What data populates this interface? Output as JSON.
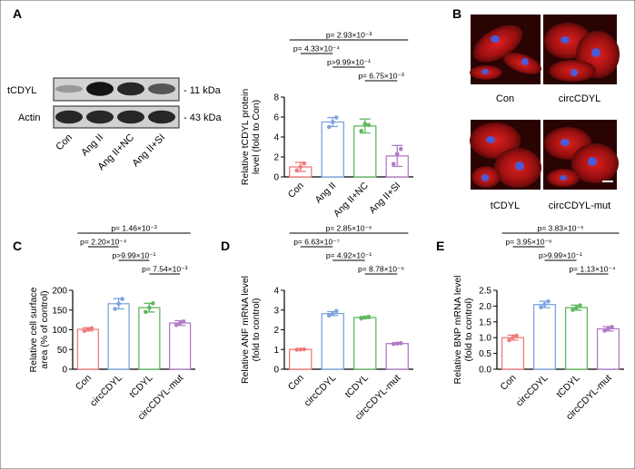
{
  "panels": {
    "A": {
      "label": "A",
      "blot": {
        "bands": [
          {
            "name": "tCDYL",
            "size": "- 11 kDa",
            "intensities": [
              0.25,
              0.95,
              0.85,
              0.6
            ]
          },
          {
            "name": "Actin",
            "size": "- 43 kDa",
            "intensities": [
              0.85,
              0.85,
              0.85,
              0.85
            ]
          }
        ],
        "lanes": [
          "Con",
          "Ang II",
          "Ang II+NC",
          "Ang II+SI"
        ]
      }
    },
    "B": {
      "label": "B",
      "images": [
        "Con",
        "circCDYL",
        "tCDYL",
        "circCDYL-mut"
      ]
    },
    "C": {
      "label": "C"
    },
    "D": {
      "label": "D"
    },
    "E": {
      "label": "E"
    }
  },
  "chart_data": [
    {
      "id": "A",
      "type": "bar",
      "categories": [
        "Con",
        "Ang II",
        "Ang II+NC",
        "Ang II+SI"
      ],
      "values": [
        1.0,
        5.5,
        5.1,
        2.1
      ],
      "errors": [
        0.45,
        0.45,
        0.7,
        1.05
      ],
      "points": [
        [
          0.65,
          1.0,
          1.35
        ],
        [
          5.0,
          5.5,
          5.95
        ],
        [
          4.6,
          5.3,
          5.2
        ],
        [
          1.3,
          2.3,
          2.8
        ]
      ],
      "colors": [
        "#f07b7b",
        "#7ea3e0",
        "#60b860",
        "#b07cc6"
      ],
      "ylabel": "Relative tCDYL protein\nlevel (fold to Con)",
      "ylim": [
        0,
        8
      ],
      "yticks": [
        0,
        2,
        4,
        6,
        8
      ],
      "comparisons": [
        {
          "from": 0,
          "to": 3,
          "text": "p= 2.93×10⁻³"
        },
        {
          "from": 0,
          "to": 1,
          "text": "p= 4.33×10⁻⁴"
        },
        {
          "from": 1,
          "to": 2,
          "text": "p>9.99×10⁻¹"
        },
        {
          "from": 2,
          "to": 3,
          "text": "p= 6.75×10⁻³"
        }
      ]
    },
    {
      "id": "C",
      "type": "bar",
      "categories": [
        "Con",
        "circCDYL",
        "tCDYL",
        "circCDYL-mut"
      ],
      "values": [
        101,
        166,
        156,
        117
      ],
      "errors": [
        4,
        13,
        11,
        6
      ],
      "points": [
        [
          97,
          101,
          104
        ],
        [
          153,
          166,
          178
        ],
        [
          145,
          156,
          167
        ],
        [
          112,
          117,
          121
        ]
      ],
      "colors": [
        "#f07b7b",
        "#7ea3e0",
        "#60b860",
        "#b07cc6"
      ],
      "ylabel": "Relative cell surface\narea (% of control)",
      "ylim": [
        0,
        200
      ],
      "yticks": [
        0,
        50,
        100,
        150,
        200
      ],
      "comparisons": [
        {
          "from": 0,
          "to": 3,
          "text": "p= 1.46×10⁻³"
        },
        {
          "from": 0,
          "to": 1,
          "text": "p= 2.20×10⁻⁴"
        },
        {
          "from": 1,
          "to": 2,
          "text": "p>9.99×10⁻¹"
        },
        {
          "from": 2,
          "to": 3,
          "text": "p= 7.54×10⁻³"
        }
      ]
    },
    {
      "id": "D",
      "type": "bar",
      "categories": [
        "Con",
        "circCDYL",
        "tCDYL",
        "circCDYL-mut"
      ],
      "values": [
        1.0,
        2.82,
        2.62,
        1.3
      ],
      "errors": [
        0.02,
        0.1,
        0.05,
        0.03
      ],
      "points": [
        [
          0.99,
          1.0,
          1.01
        ],
        [
          2.72,
          2.8,
          2.95
        ],
        [
          2.57,
          2.62,
          2.66
        ],
        [
          1.28,
          1.3,
          1.32
        ]
      ],
      "colors": [
        "#f07b7b",
        "#7ea3e0",
        "#60b860",
        "#b07cc6"
      ],
      "ylabel": "Relative ANF mRNA level\n(fold to control)",
      "ylim": [
        0,
        4
      ],
      "yticks": [
        0,
        1,
        2,
        3,
        4
      ],
      "comparisons": [
        {
          "from": 0,
          "to": 3,
          "text": "p= 2.85×10⁻⁶"
        },
        {
          "from": 0,
          "to": 1,
          "text": "p= 6.63×10⁻⁷"
        },
        {
          "from": 1,
          "to": 2,
          "text": "p= 4.92×10⁻¹"
        },
        {
          "from": 2,
          "to": 3,
          "text": "p= 8.78×10⁻⁶"
        }
      ]
    },
    {
      "id": "E",
      "type": "bar",
      "categories": [
        "Con",
        "circCDYL",
        "tCDYL",
        "circCDYL-mut"
      ],
      "values": [
        1.0,
        2.05,
        1.95,
        1.28
      ],
      "errors": [
        0.08,
        0.1,
        0.08,
        0.07
      ],
      "points": [
        [
          0.92,
          1.0,
          1.06
        ],
        [
          1.96,
          2.05,
          2.15
        ],
        [
          1.88,
          1.95,
          2.02
        ],
        [
          1.22,
          1.28,
          1.34
        ]
      ],
      "colors": [
        "#f07b7b",
        "#7ea3e0",
        "#60b860",
        "#b07cc6"
      ],
      "ylabel": "Relative BNP mRNA level\n(fold to control)",
      "ylim": [
        0,
        2.5
      ],
      "yticks": [
        0,
        0.5,
        1.0,
        1.5,
        2.0,
        2.5
      ],
      "comparisons": [
        {
          "from": 0,
          "to": 3,
          "text": "p= 3.83×10⁻⁵"
        },
        {
          "from": 0,
          "to": 1,
          "text": "p= 3.95×10⁻⁶"
        },
        {
          "from": 1,
          "to": 2,
          "text": "p>9.99×10⁻¹"
        },
        {
          "from": 2,
          "to": 3,
          "text": "p= 1.13×10⁻⁴"
        }
      ]
    }
  ]
}
